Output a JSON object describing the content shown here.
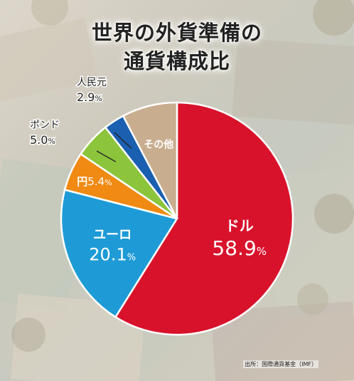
{
  "title": {
    "line1": "世界の外貨準備の",
    "line2": "通貨構成比"
  },
  "chart_data": {
    "type": "pie",
    "title": "世界の外貨準備の通貨構成比",
    "slices": [
      {
        "name": "ドル",
        "value": 58.9,
        "value_label": "58.9",
        "unit": "%",
        "color": "#d9122b"
      },
      {
        "name": "ユーロ",
        "value": 20.1,
        "value_label": "20.1",
        "unit": "%",
        "color": "#1e9bd7"
      },
      {
        "name": "円",
        "value": 5.4,
        "value_label": "5.4",
        "unit": "%",
        "color": "#f08a12"
      },
      {
        "name": "ポンド",
        "value": 5.0,
        "value_label": "5.0",
        "unit": "%",
        "color": "#8cc43c"
      },
      {
        "name": "人民元",
        "value": 2.9,
        "value_label": "2.9",
        "unit": "%",
        "color": "#1a5fb0"
      },
      {
        "name": "その他",
        "value": 7.7,
        "value_label": "",
        "unit": "",
        "color": "#c9ad8f"
      }
    ]
  },
  "source": "出所：国際通貨基金（IMF）"
}
